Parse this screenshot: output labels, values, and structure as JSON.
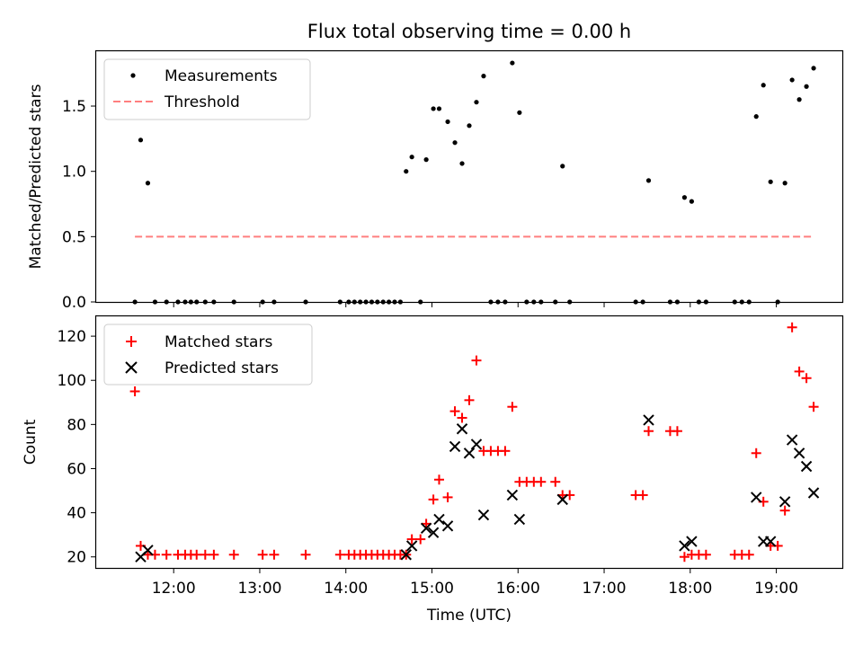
{
  "chart_data": [
    {
      "type": "scatter",
      "title": "Flux total observing time = 0.00 h",
      "xlabel": "",
      "ylabel": "Matched/Predicted stars",
      "xlim": [
        "11:06",
        "19:46"
      ],
      "ylim": [
        0,
        1.92
      ],
      "yticks": [
        0.0,
        0.5,
        1.0,
        1.5
      ],
      "ytick_labels": [
        "0.0",
        "0.5",
        "1.0",
        "1.5"
      ],
      "grid": false,
      "legend": "top-left",
      "series": [
        {
          "name": "Measurements",
          "color": "#000000",
          "marker": "dot",
          "points": [
            [
              "11:33",
              0
            ],
            [
              "11:37",
              1.24
            ],
            [
              "11:42",
              0.91
            ],
            [
              "11:47",
              0
            ],
            [
              "11:55",
              0
            ],
            [
              "12:03",
              0
            ],
            [
              "12:08",
              0
            ],
            [
              "12:12",
              0
            ],
            [
              "12:16",
              0
            ],
            [
              "12:22",
              0
            ],
            [
              "12:28",
              0
            ],
            [
              "12:42",
              0
            ],
            [
              "13:02",
              0
            ],
            [
              "13:10",
              0
            ],
            [
              "13:32",
              0
            ],
            [
              "13:56",
              0
            ],
            [
              "14:02",
              0
            ],
            [
              "14:06",
              0
            ],
            [
              "14:10",
              0
            ],
            [
              "14:14",
              0
            ],
            [
              "14:18",
              0
            ],
            [
              "14:22",
              0
            ],
            [
              "14:26",
              0
            ],
            [
              "14:30",
              0
            ],
            [
              "14:34",
              0
            ],
            [
              "14:38",
              0
            ],
            [
              "14:42",
              1.0
            ],
            [
              "14:46",
              1.11
            ],
            [
              "14:52",
              0
            ],
            [
              "14:56",
              1.09
            ],
            [
              "15:01",
              1.48
            ],
            [
              "15:05",
              1.48
            ],
            [
              "15:11",
              1.38
            ],
            [
              "15:16",
              1.22
            ],
            [
              "15:21",
              1.06
            ],
            [
              "15:26",
              1.35
            ],
            [
              "15:31",
              1.53
            ],
            [
              "15:36",
              1.73
            ],
            [
              "15:41",
              0
            ],
            [
              "15:46",
              0
            ],
            [
              "15:51",
              0
            ],
            [
              "15:56",
              1.83
            ],
            [
              "16:01",
              1.45
            ],
            [
              "16:06",
              0
            ],
            [
              "16:11",
              0
            ],
            [
              "16:16",
              0
            ],
            [
              "16:26",
              0
            ],
            [
              "16:31",
              1.04
            ],
            [
              "16:36",
              0
            ],
            [
              "17:22",
              0
            ],
            [
              "17:27",
              0
            ],
            [
              "17:31",
              0.93
            ],
            [
              "17:46",
              0
            ],
            [
              "17:51",
              0
            ],
            [
              "17:56",
              0.8
            ],
            [
              "18:01",
              0.77
            ],
            [
              "18:06",
              0
            ],
            [
              "18:11",
              0
            ],
            [
              "18:31",
              0
            ],
            [
              "18:36",
              0
            ],
            [
              "18:41",
              0
            ],
            [
              "18:46",
              1.42
            ],
            [
              "18:51",
              1.66
            ],
            [
              "18:56",
              0.92
            ],
            [
              "19:01",
              0
            ],
            [
              "19:06",
              0.91
            ],
            [
              "19:11",
              1.7
            ],
            [
              "19:16",
              1.55
            ],
            [
              "19:21",
              1.65
            ],
            [
              "19:26",
              1.79
            ]
          ]
        },
        {
          "name": "Threshold",
          "color": "#ff7f7f",
          "style": "dashed",
          "points": [
            [
              "11:33",
              0.5
            ],
            [
              "19:26",
              0.5
            ]
          ]
        }
      ]
    },
    {
      "type": "scatter",
      "title": "",
      "xlabel": "Time (UTC)",
      "ylabel": "Count",
      "xlim": [
        "11:06",
        "19:46"
      ],
      "ylim": [
        15,
        129
      ],
      "yticks": [
        20,
        40,
        60,
        80,
        100,
        120
      ],
      "xticks": [
        "12:00",
        "13:00",
        "14:00",
        "15:00",
        "16:00",
        "17:00",
        "18:00",
        "19:00"
      ],
      "grid": false,
      "legend": "top-left",
      "series": [
        {
          "name": "Matched stars",
          "color": "#ff0000",
          "marker": "plus",
          "points": [
            [
              "11:33",
              95
            ],
            [
              "11:37",
              25
            ],
            [
              "11:42",
              21
            ],
            [
              "11:47",
              21
            ],
            [
              "11:55",
              21
            ],
            [
              "12:03",
              21
            ],
            [
              "12:08",
              21
            ],
            [
              "12:12",
              21
            ],
            [
              "12:16",
              21
            ],
            [
              "12:22",
              21
            ],
            [
              "12:28",
              21
            ],
            [
              "12:42",
              21
            ],
            [
              "13:02",
              21
            ],
            [
              "13:10",
              21
            ],
            [
              "13:32",
              21
            ],
            [
              "13:56",
              21
            ],
            [
              "14:02",
              21
            ],
            [
              "14:06",
              21
            ],
            [
              "14:10",
              21
            ],
            [
              "14:14",
              21
            ],
            [
              "14:18",
              21
            ],
            [
              "14:22",
              21
            ],
            [
              "14:26",
              21
            ],
            [
              "14:30",
              21
            ],
            [
              "14:34",
              21
            ],
            [
              "14:38",
              21
            ],
            [
              "14:42",
              21
            ],
            [
              "14:46",
              28
            ],
            [
              "14:52",
              28
            ],
            [
              "14:56",
              35
            ],
            [
              "15:01",
              46
            ],
            [
              "15:05",
              55
            ],
            [
              "15:11",
              47
            ],
            [
              "15:16",
              86
            ],
            [
              "15:21",
              83
            ],
            [
              "15:26",
              91
            ],
            [
              "15:31",
              109
            ],
            [
              "15:36",
              68
            ],
            [
              "15:41",
              68
            ],
            [
              "15:46",
              68
            ],
            [
              "15:51",
              68
            ],
            [
              "15:56",
              88
            ],
            [
              "16:01",
              54
            ],
            [
              "16:06",
              54
            ],
            [
              "16:11",
              54
            ],
            [
              "16:16",
              54
            ],
            [
              "16:26",
              54
            ],
            [
              "16:31",
              48
            ],
            [
              "16:36",
              48
            ],
            [
              "17:22",
              48
            ],
            [
              "17:27",
              48
            ],
            [
              "17:31",
              77
            ],
            [
              "17:46",
              77
            ],
            [
              "17:51",
              77
            ],
            [
              "17:56",
              20
            ],
            [
              "18:01",
              21
            ],
            [
              "18:06",
              21
            ],
            [
              "18:11",
              21
            ],
            [
              "18:31",
              21
            ],
            [
              "18:36",
              21
            ],
            [
              "18:41",
              21
            ],
            [
              "18:46",
              67
            ],
            [
              "18:51",
              45
            ],
            [
              "18:56",
              25
            ],
            [
              "19:01",
              25
            ],
            [
              "19:06",
              41
            ],
            [
              "19:11",
              124
            ],
            [
              "19:16",
              104
            ],
            [
              "19:21",
              101
            ],
            [
              "19:26",
              88
            ]
          ]
        },
        {
          "name": "Predicted stars",
          "color": "#000000",
          "marker": "x",
          "points": [
            [
              "11:37",
              20
            ],
            [
              "11:42",
              23
            ],
            [
              "14:42",
              21
            ],
            [
              "14:46",
              25
            ],
            [
              "14:56",
              33
            ],
            [
              "15:01",
              31
            ],
            [
              "15:05",
              37
            ],
            [
              "15:11",
              34
            ],
            [
              "15:16",
              70
            ],
            [
              "15:21",
              78
            ],
            [
              "15:26",
              67
            ],
            [
              "15:31",
              71
            ],
            [
              "15:36",
              39
            ],
            [
              "15:56",
              48
            ],
            [
              "16:01",
              37
            ],
            [
              "16:31",
              46
            ],
            [
              "17:31",
              82
            ],
            [
              "17:56",
              25
            ],
            [
              "18:01",
              27
            ],
            [
              "18:46",
              47
            ],
            [
              "18:51",
              27
            ],
            [
              "18:56",
              27
            ],
            [
              "19:06",
              45
            ],
            [
              "19:11",
              73
            ],
            [
              "19:16",
              67
            ],
            [
              "19:21",
              61
            ],
            [
              "19:26",
              49
            ]
          ]
        }
      ]
    }
  ]
}
